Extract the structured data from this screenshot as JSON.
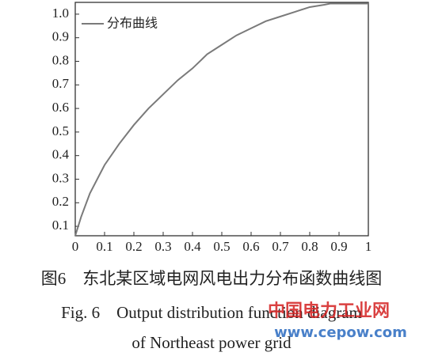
{
  "chart_data": {
    "type": "line",
    "x": [
      0,
      0.02,
      0.05,
      0.1,
      0.15,
      0.2,
      0.25,
      0.3,
      0.35,
      0.4,
      0.45,
      0.5,
      0.55,
      0.6,
      0.65,
      0.7,
      0.75,
      0.8,
      0.85,
      0.87,
      0.9,
      0.95,
      1
    ],
    "series": [
      {
        "name": "分布曲线",
        "color": "#7a7a7a",
        "values": [
          0.06,
          0.14,
          0.24,
          0.36,
          0.45,
          0.53,
          0.6,
          0.66,
          0.72,
          0.77,
          0.83,
          0.87,
          0.91,
          0.94,
          0.97,
          0.99,
          1.01,
          1.03,
          1.04,
          1.045,
          1.045,
          1.045,
          1.045
        ]
      }
    ],
    "xlim": [
      0,
      1
    ],
    "ylim": [
      0.06,
      1.05
    ],
    "xticks": [
      0,
      0.1,
      0.2,
      0.3,
      0.4,
      0.5,
      0.6,
      0.7,
      0.8,
      0.9,
      1
    ],
    "yticks": [
      0.1,
      0.2,
      0.3,
      0.4,
      0.5,
      0.6,
      0.7,
      0.8,
      0.9,
      {
        "value": 1,
        "label": "1.0"
      }
    ],
    "grid": false,
    "legend": "upper left"
  },
  "caption": {
    "cn": "图6　东北某区域电网风电出力分布函数曲线图",
    "en1": "Fig. 6　Output distribution function diagram",
    "en2": "of Northeast power grid"
  },
  "watermark": {
    "name": "中国电力工业网",
    "url": "www.cepow.com"
  }
}
